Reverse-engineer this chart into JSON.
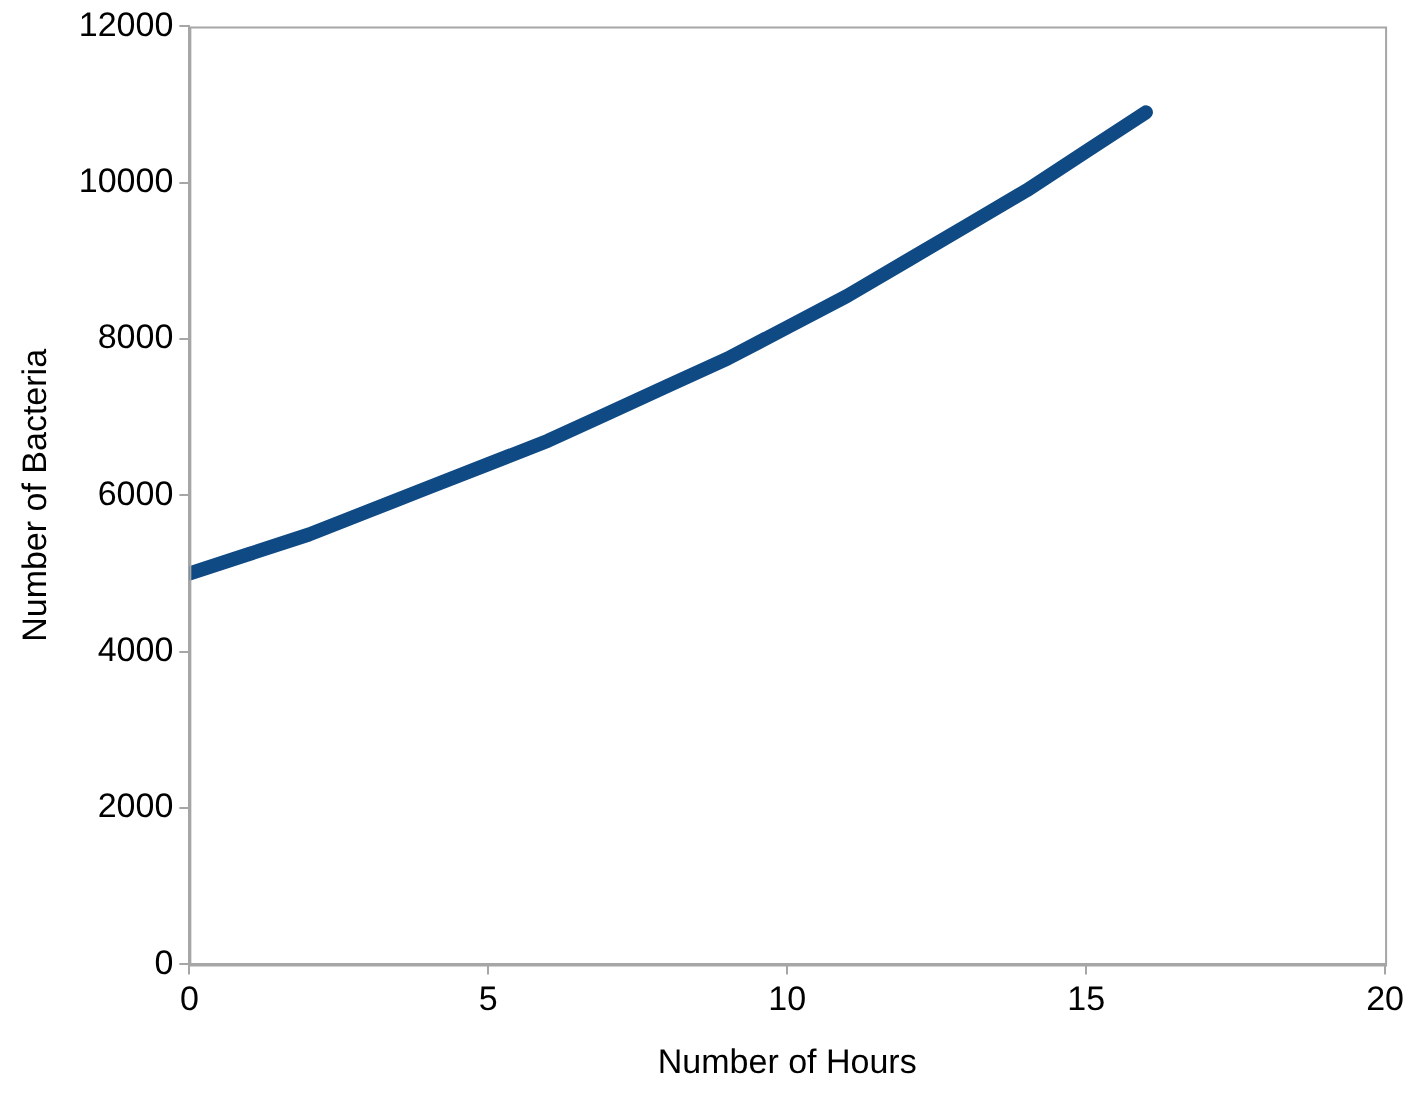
{
  "chart_data": {
    "type": "line",
    "xlabel": "Number of Hours",
    "ylabel": "Number of Bacteria",
    "x": [
      0,
      1,
      2,
      3,
      4,
      5,
      6,
      7,
      8,
      9,
      10,
      11,
      12,
      13,
      14,
      15,
      16
    ],
    "series": [
      {
        "color": "#0f4a84",
        "values": [
          5000,
          5250,
          5500,
          5800,
          6100,
          6400,
          6700,
          7050,
          7400,
          7750,
          8150,
          8550,
          9000,
          9450,
          9900,
          10400,
          10900
        ]
      }
    ],
    "xlim": [
      0,
      20
    ],
    "xticks": [
      0,
      5,
      10,
      15,
      20
    ],
    "ylim": [
      0,
      12000
    ],
    "yticks": [
      0,
      2000,
      4000,
      6000,
      8000,
      10000,
      12000
    ],
    "grid": false,
    "legend": false,
    "marker": "none",
    "line_style": "solid"
  }
}
